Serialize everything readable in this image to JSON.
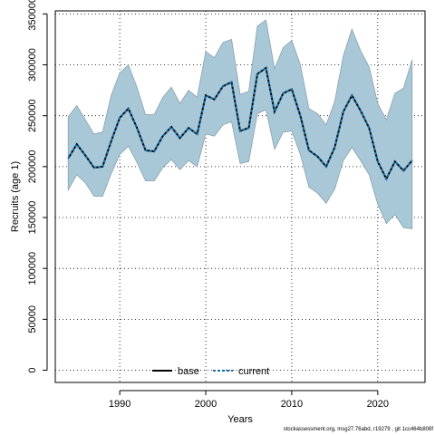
{
  "chart_data": {
    "type": "line",
    "xlabel": "Years",
    "ylabel": "Recruits (age 1)",
    "xlim": [
      1982.5,
      2025.5
    ],
    "ylim": [
      -12000,
      353000
    ],
    "x_ticks": [
      1990,
      2000,
      2010,
      2020
    ],
    "y_ticks": [
      0,
      50000,
      100000,
      150000,
      200000,
      250000,
      300000,
      350000
    ],
    "grid": true,
    "legend_position": "bottom-center",
    "x": [
      1984,
      1985,
      1986,
      1987,
      1988,
      1989,
      1990,
      1991,
      1992,
      1993,
      1994,
      1995,
      1996,
      1997,
      1998,
      1999,
      2000,
      2001,
      2002,
      2003,
      2004,
      2005,
      2006,
      2007,
      2008,
      2009,
      2010,
      2011,
      2012,
      2013,
      2014,
      2015,
      2016,
      2017,
      2018,
      2019,
      2020,
      2021,
      2022,
      2023,
      2024
    ],
    "band_color": "#a8c8d8",
    "band_edge_color": "#8aa0ae",
    "series": [
      {
        "name": "base",
        "color": "#000000",
        "style": "solid",
        "values": [
          208000,
          222000,
          211000,
          199000,
          200000,
          225000,
          248000,
          257000,
          238000,
          216000,
          215000,
          230000,
          239000,
          228000,
          238000,
          232000,
          270000,
          266000,
          279000,
          283000,
          235000,
          238000,
          291000,
          297000,
          254000,
          272000,
          276000,
          250000,
          216000,
          210000,
          200000,
          219000,
          254000,
          270000,
          255000,
          238000,
          205000,
          188000,
          205000,
          196000,
          206000
        ]
      },
      {
        "name": "current",
        "color": "#1a6fa8",
        "style": "dashed",
        "values": [
          208000,
          222000,
          211000,
          199000,
          200000,
          225000,
          248000,
          257000,
          238000,
          216000,
          215000,
          230000,
          239000,
          228000,
          238000,
          232000,
          270000,
          266000,
          279000,
          283000,
          235000,
          238000,
          291000,
          297000,
          254000,
          272000,
          276000,
          250000,
          216000,
          210000,
          200000,
          219000,
          254000,
          270000,
          255000,
          238000,
          205000,
          188000,
          205000,
          196000,
          206000
        ]
      }
    ],
    "upper": [
      249000,
      260000,
      246000,
      232000,
      234000,
      270000,
      292000,
      300000,
      278000,
      251000,
      251000,
      268000,
      278000,
      262000,
      275000,
      268000,
      313000,
      307000,
      322000,
      325000,
      271000,
      274000,
      338000,
      344000,
      296000,
      317000,
      324000,
      300000,
      257000,
      252000,
      241000,
      264000,
      309000,
      335000,
      314000,
      298000,
      262000,
      246000,
      272000,
      277000,
      305000
    ],
    "lower": [
      177000,
      192000,
      184000,
      171000,
      171000,
      193000,
      212000,
      220000,
      204000,
      186000,
      186000,
      199000,
      207000,
      197000,
      206000,
      200000,
      232000,
      230000,
      241000,
      244000,
      203000,
      205000,
      252000,
      256000,
      217000,
      234000,
      235000,
      212000,
      180000,
      174000,
      164000,
      178000,
      206000,
      219000,
      206000,
      192000,
      163000,
      144000,
      153000,
      140000,
      139000
    ]
  },
  "legend": {
    "items": [
      {
        "label": "base"
      },
      {
        "label": "current"
      }
    ]
  },
  "footer": {
    "text": "stockassessment.org, msg27.76abd, r19279 , git 1cc464b808f"
  }
}
